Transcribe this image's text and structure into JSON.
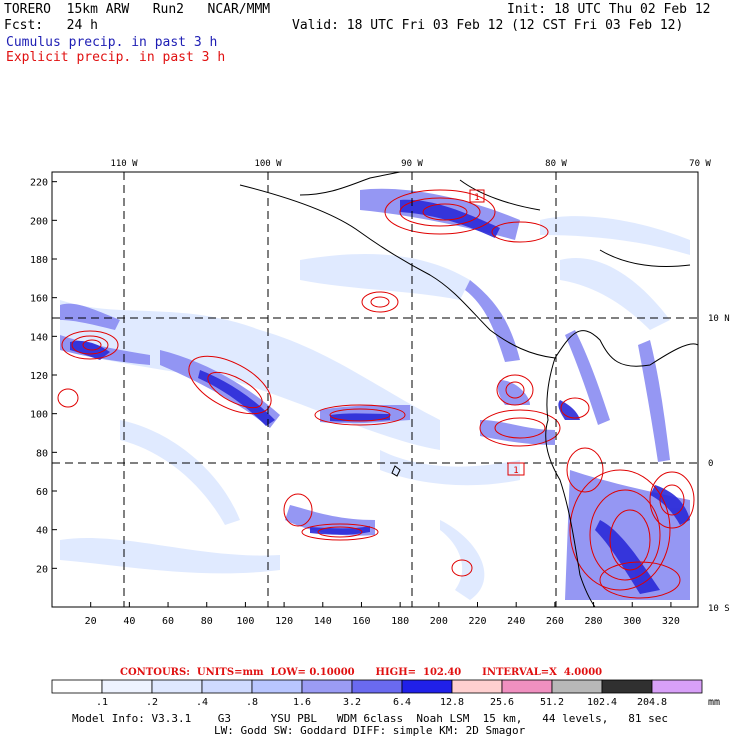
{
  "header": {
    "line1_left": "TORERO  15km ARW   Run2   NCAR/MMM",
    "line1_right": "Init: 18 UTC Thu 02 Feb 12",
    "line2_left": "Fcst:   24 h",
    "line2_right": "Valid: 18 UTC Fri 03 Feb 12 (12 CST Fri 03 Feb 12)",
    "line3": "Cumulus precip. in past 3 h",
    "line4": "Explicit precip. in past 3 h"
  },
  "map": {
    "top_lon_labels": [
      "110 W",
      "100 W",
      "90 W",
      "80 W",
      "70 W"
    ],
    "right_lat_labels": [
      "10 N",
      "0",
      "10 S"
    ],
    "left_ticks": [
      "220",
      "200",
      "180",
      "160",
      "140",
      "120",
      "100",
      "80",
      "60",
      "40",
      "20"
    ],
    "bottom_ticks": [
      "20",
      "40",
      "60",
      "80",
      "100",
      "120",
      "140",
      "160",
      "180",
      "200",
      "220",
      "240",
      "260",
      "280",
      "300",
      "320"
    ],
    "box_labels": [
      "1",
      "1"
    ],
    "colors": {
      "cumulus_light": "#dde8ff",
      "cumulus_mid": "#8a8cf2",
      "cumulus_dark": "#2a2ad8",
      "explicit_contour": "#e00000",
      "grid_line": "#000000"
    }
  },
  "contours_note": "CONTOURS:  UNITS=mm  LOW= 0.10000      HIGH=  102.40      INTERVAL=X  4.0000",
  "legend": {
    "tick_labels": [
      ".1",
      ".2",
      ".4",
      ".8",
      "1.6",
      "3.2",
      "6.4",
      "12.8",
      "25.6",
      "51.2",
      "102.4",
      "204.8"
    ],
    "unit": "mm",
    "colors": [
      "#ffffff",
      "#eef3ff",
      "#dfe8ff",
      "#cfdaff",
      "#b9c6ff",
      "#9b9cf5",
      "#6a6af0",
      "#2020e8",
      "#ffd0d0",
      "#f090c0",
      "#b8b8b8",
      "#303030",
      "#d8a0f8"
    ]
  },
  "model_info": {
    "line1": "Model Info: V3.3.1    G3      YSU PBL   WDM 6class  Noah LSM  15 km,   44 levels,   81 sec",
    "line2": "LW: Godd SW: Goddard DIFF: simple KM: 2D Smagor"
  }
}
